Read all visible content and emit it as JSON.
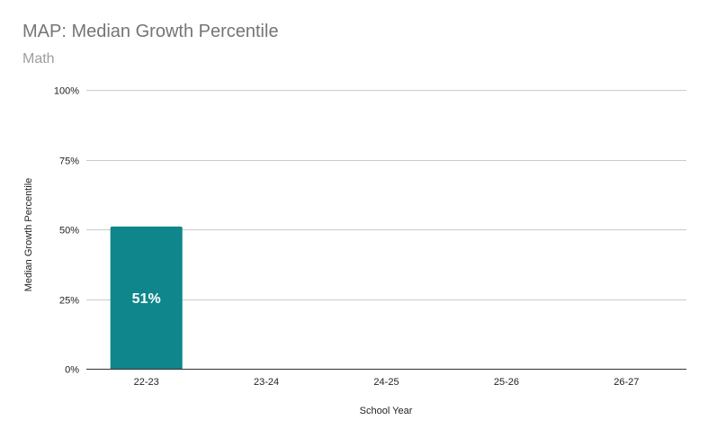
{
  "chart_data": {
    "type": "bar",
    "title": "MAP: Median Growth Percentile",
    "subtitle": "Math",
    "xlabel": "School Year",
    "ylabel": "Median Growth Percentile",
    "categories": [
      "22-23",
      "23-24",
      "24-25",
      "25-26",
      "26-27"
    ],
    "values": [
      51,
      null,
      null,
      null,
      null
    ],
    "data_labels": [
      "51%",
      "",
      "",
      "",
      ""
    ],
    "ylim": [
      0,
      100
    ],
    "yticks": [
      0,
      25,
      50,
      75,
      100
    ],
    "ytick_labels": [
      "0%",
      "25%",
      "50%",
      "75%",
      "100%"
    ],
    "grid": true,
    "legend": "none",
    "colors": {
      "bar": "#0e868c",
      "grid": "#cccccc",
      "axis": "#333333",
      "data_label": "#ffffff"
    }
  }
}
